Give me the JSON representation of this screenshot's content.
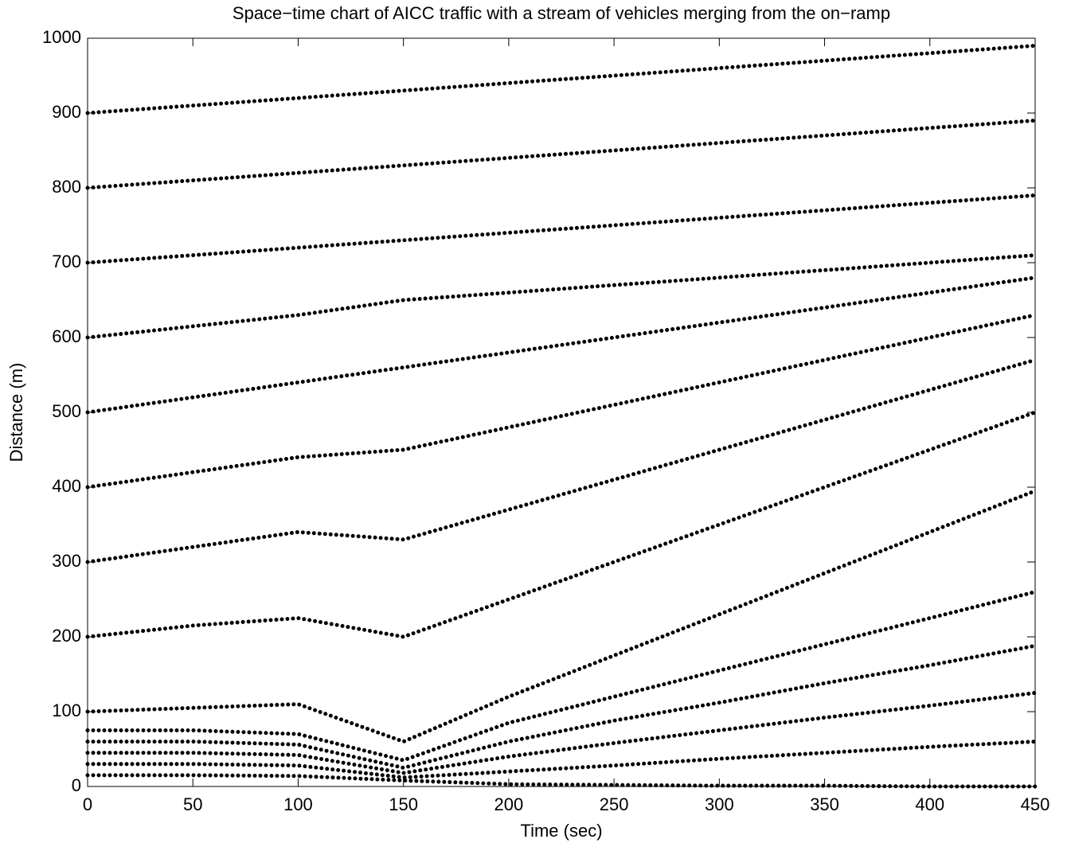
{
  "chart_data": {
    "type": "line",
    "title": "Space−time chart of AICC traffic with a stream of vehicles merging from the on−ramp",
    "x_label": "Time (sec)",
    "y_label": "Distance (m)",
    "x": [
      0,
      50,
      100,
      150,
      200,
      250,
      300,
      350,
      400,
      450
    ],
    "series": [
      {
        "color": "#000000",
        "values": [
          15,
          15,
          14,
          8,
          3,
          2,
          1,
          1,
          0,
          0
        ]
      },
      {
        "color": "#000000",
        "values": [
          30,
          30,
          28,
          12,
          20,
          28,
          37,
          45,
          53,
          60
        ]
      },
      {
        "color": "#000000",
        "values": [
          45,
          45,
          42,
          18,
          40,
          58,
          75,
          92,
          108,
          125
        ]
      },
      {
        "color": "#000000",
        "values": [
          60,
          60,
          56,
          25,
          60,
          88,
          112,
          138,
          162,
          188
        ]
      },
      {
        "color": "#000000",
        "values": [
          75,
          75,
          70,
          35,
          85,
          120,
          155,
          190,
          225,
          260
        ]
      },
      {
        "color": "#000000",
        "values": [
          100,
          105,
          110,
          60,
          120,
          175,
          230,
          285,
          340,
          395
        ]
      },
      {
        "color": "#000000",
        "values": [
          200,
          215,
          225,
          200,
          250,
          300,
          350,
          400,
          450,
          500
        ]
      },
      {
        "color": "#000000",
        "values": [
          300,
          320,
          340,
          330,
          370,
          410,
          450,
          490,
          530,
          570
        ]
      },
      {
        "color": "#000000",
        "values": [
          400,
          420,
          440,
          450,
          480,
          510,
          540,
          570,
          600,
          630
        ]
      },
      {
        "color": "#000000",
        "values": [
          500,
          520,
          540,
          560,
          580,
          600,
          620,
          640,
          660,
          680
        ]
      },
      {
        "color": "#000000",
        "values": [
          600,
          615,
          630,
          650,
          660,
          670,
          680,
          690,
          700,
          710
        ]
      },
      {
        "color": "#000000",
        "values": [
          700,
          710,
          720,
          730,
          740,
          750,
          760,
          770,
          780,
          790
        ]
      },
      {
        "color": "#000000",
        "values": [
          800,
          810,
          820,
          830,
          840,
          850,
          860,
          870,
          880,
          890
        ]
      },
      {
        "color": "#000000",
        "values": [
          900,
          910,
          920,
          930,
          940,
          950,
          960,
          970,
          980,
          990
        ]
      }
    ],
    "xlim": [
      0,
      450
    ],
    "xticks": [
      0,
      50,
      100,
      150,
      200,
      250,
      300,
      350,
      400,
      450
    ],
    "ylim": [
      0,
      1000
    ],
    "yticks": [
      0,
      100,
      200,
      300,
      400,
      500,
      600,
      700,
      800,
      900,
      1000
    ],
    "grid": false
  }
}
